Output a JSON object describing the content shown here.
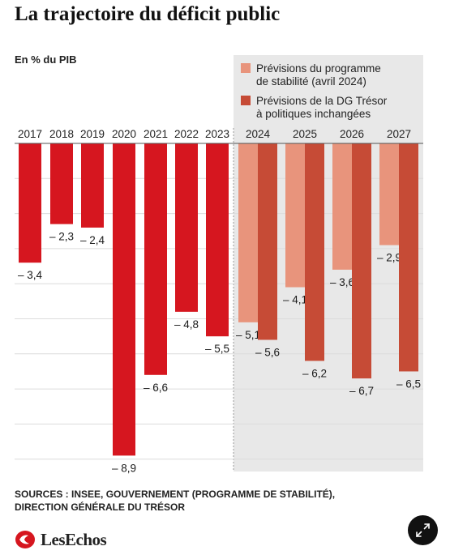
{
  "title": "La trajectoire du déficit public",
  "unit_label": "En % du PIB",
  "sources": [
    "SOURCES : INSEE, GOUVERNEMENT (PROGRAMME DE STABILITÉ),",
    "DIRECTION GÉNÉRALE DU TRÉSOR"
  ],
  "logo": "LesEchos",
  "icons": {
    "logo": "les-echos-logo-icon",
    "expand": "expand-icon"
  },
  "colors": {
    "historical": "#d6161f",
    "stability": "#e8947c",
    "treasury": "#c64b36",
    "forecast_background": "#e8e8e8",
    "gridline": "#dcdcdc",
    "logo": "#d6161f"
  },
  "chart_data": {
    "type": "bar",
    "orientation": "bars hang downward from zero line",
    "ylim": [
      -9.5,
      0
    ],
    "grid": true,
    "legend_placement": "top-right, inside shaded forecast area",
    "historical": {
      "categories": [
        "2017",
        "2018",
        "2019",
        "2020",
        "2021",
        "2022",
        "2023"
      ],
      "values": [
        -3.4,
        -2.3,
        -2.4,
        -8.9,
        -6.6,
        -4.8,
        -5.5
      ],
      "labels": [
        "– 3,4",
        "– 2,3",
        "– 2,4",
        "– 8,9",
        "– 6,6",
        "– 4,8",
        "– 5,5"
      ]
    },
    "forecast": {
      "categories": [
        "2024",
        "2025",
        "2026",
        "2027"
      ],
      "series": [
        {
          "name": "Prévisions du programme de stabilité (avril 2024)",
          "legend_lines": [
            "Prévisions du programme",
            "de stabilité (avril 2024)"
          ],
          "values": [
            -5.1,
            -4.1,
            -3.6,
            -2.9
          ],
          "labels": [
            "– 5,1",
            "– 4,1",
            "– 3,6",
            "– 2,9"
          ]
        },
        {
          "name": "Prévisions de la DG Trésor à politiques inchangées",
          "legend_lines": [
            "Prévisions de la DG Trésor",
            "à politiques inchangées"
          ],
          "values": [
            -5.6,
            -6.2,
            -6.7,
            -6.5
          ],
          "labels": [
            "– 5,6",
            "– 6,2",
            "– 6,7",
            "– 6,5"
          ]
        }
      ]
    }
  }
}
